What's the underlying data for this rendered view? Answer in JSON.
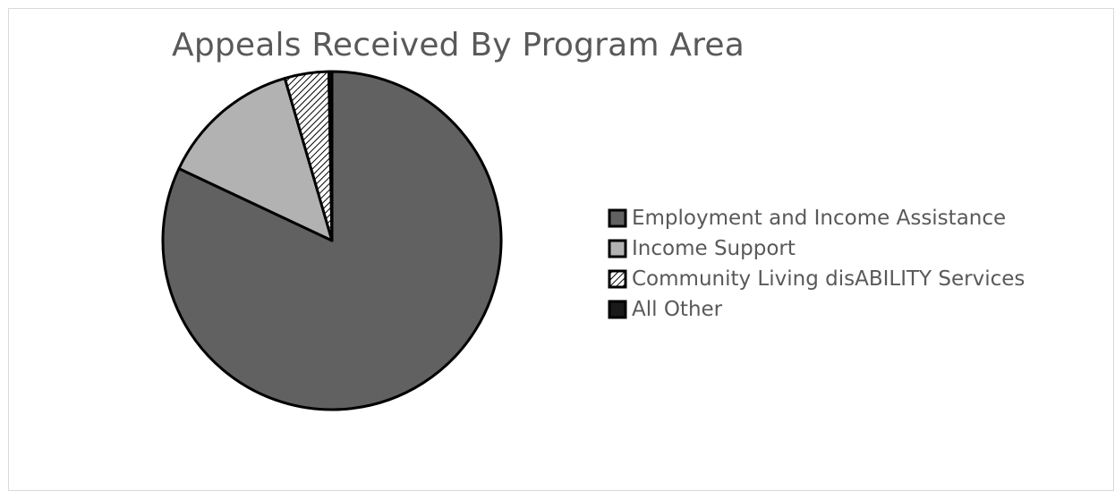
{
  "chart_data": {
    "type": "pie",
    "title": "Appeals Received By Program Area",
    "legend_position": "right",
    "categories": [
      "Employment and Income Assistance",
      "Income Support",
      "Community Living disABILITY Services",
      "All Other"
    ],
    "values": [
      82,
      13.5,
      4.2,
      0.3
    ],
    "colors": [
      "#616161",
      "#b2b2b2",
      "hatch",
      "#1a1a1a"
    ]
  }
}
